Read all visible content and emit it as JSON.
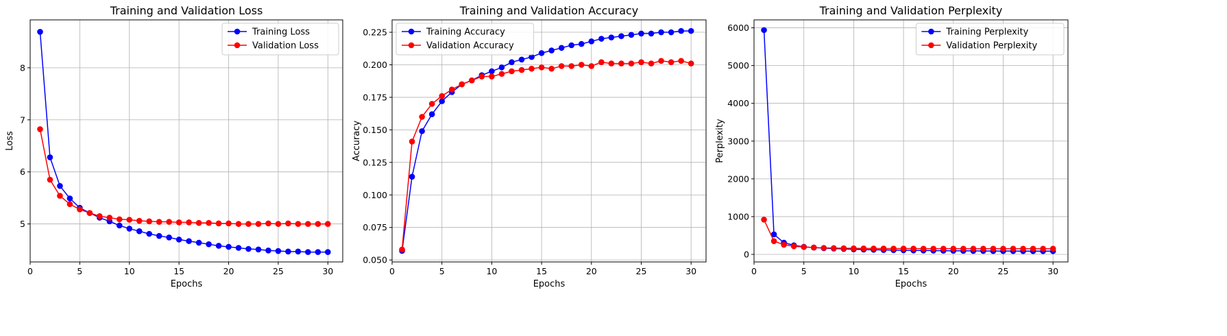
{
  "chart_data": [
    {
      "type": "line",
      "title": "Training and Validation Loss",
      "xlabel": "Epochs",
      "ylabel": "Loss",
      "xlim": [
        0,
        31.5
      ],
      "ylim": [
        4.27,
        8.92
      ],
      "xticks": [
        0,
        5,
        10,
        15,
        20,
        25,
        30
      ],
      "yticks": [
        5,
        6,
        7,
        8
      ],
      "grid": true,
      "legend": "top-right",
      "x": [
        1,
        2,
        3,
        4,
        5,
        6,
        7,
        8,
        9,
        10,
        11,
        12,
        13,
        14,
        15,
        16,
        17,
        18,
        19,
        20,
        21,
        22,
        23,
        24,
        25,
        26,
        27,
        28,
        29,
        30
      ],
      "series": [
        {
          "name": "Training Loss",
          "color": "#0000ff",
          "values": [
            8.69,
            6.28,
            5.73,
            5.49,
            5.31,
            5.21,
            5.12,
            5.05,
            4.97,
            4.91,
            4.86,
            4.81,
            4.77,
            4.74,
            4.7,
            4.67,
            4.64,
            4.61,
            4.58,
            4.56,
            4.54,
            4.52,
            4.51,
            4.49,
            4.48,
            4.47,
            4.47,
            4.46,
            4.46,
            4.46
          ]
        },
        {
          "name": "Validation Loss",
          "color": "#ff0000",
          "values": [
            6.82,
            5.85,
            5.54,
            5.38,
            5.28,
            5.21,
            5.15,
            5.12,
            5.09,
            5.08,
            5.06,
            5.05,
            5.04,
            5.04,
            5.03,
            5.03,
            5.02,
            5.02,
            5.01,
            5.01,
            5.0,
            5.0,
            5.0,
            5.01,
            5.0,
            5.01,
            5.0,
            5.0,
            5.0,
            5.0
          ]
        }
      ]
    },
    {
      "type": "line",
      "title": "Training and Validation Accuracy",
      "xlabel": "Epochs",
      "ylabel": "Accuracy",
      "xlim": [
        0,
        31.5
      ],
      "ylim": [
        0.0485,
        0.2345
      ],
      "xticks": [
        0,
        5,
        10,
        15,
        20,
        25,
        30
      ],
      "yticks": [
        0.05,
        0.075,
        0.1,
        0.125,
        0.15,
        0.175,
        0.2,
        0.225
      ],
      "grid": true,
      "legend": "top-left",
      "x": [
        1,
        2,
        3,
        4,
        5,
        6,
        7,
        8,
        9,
        10,
        11,
        12,
        13,
        14,
        15,
        16,
        17,
        18,
        19,
        20,
        21,
        22,
        23,
        24,
        25,
        26,
        27,
        28,
        29,
        30
      ],
      "series": [
        {
          "name": "Training Accuracy",
          "color": "#0000ff",
          "values": [
            0.057,
            0.114,
            0.149,
            0.162,
            0.172,
            0.179,
            0.185,
            0.188,
            0.192,
            0.195,
            0.198,
            0.202,
            0.204,
            0.206,
            0.209,
            0.211,
            0.213,
            0.215,
            0.216,
            0.218,
            0.22,
            0.221,
            0.222,
            0.223,
            0.224,
            0.224,
            0.225,
            0.225,
            0.226,
            0.226
          ]
        },
        {
          "name": "Validation Accuracy",
          "color": "#ff0000",
          "values": [
            0.058,
            0.141,
            0.16,
            0.17,
            0.176,
            0.181,
            0.185,
            0.188,
            0.191,
            0.191,
            0.193,
            0.195,
            0.196,
            0.197,
            0.198,
            0.197,
            0.199,
            0.199,
            0.2,
            0.199,
            0.202,
            0.201,
            0.201,
            0.201,
            0.202,
            0.201,
            0.203,
            0.202,
            0.203,
            0.201
          ]
        }
      ]
    },
    {
      "type": "line",
      "title": "Training and Validation Perplexity",
      "xlabel": "Epochs",
      "ylabel": "Perplexity",
      "xlim": [
        0,
        31.5
      ],
      "ylim": [
        -200,
        6210
      ],
      "xticks": [
        0,
        5,
        10,
        15,
        20,
        25,
        30
      ],
      "yticks": [
        0,
        1000,
        2000,
        3000,
        4000,
        5000,
        6000
      ],
      "grid": true,
      "legend": "top-right",
      "x": [
        1,
        2,
        3,
        4,
        5,
        6,
        7,
        8,
        9,
        10,
        11,
        12,
        13,
        14,
        15,
        16,
        17,
        18,
        19,
        20,
        21,
        22,
        23,
        24,
        25,
        26,
        27,
        28,
        29,
        30
      ],
      "series": [
        {
          "name": "Training Perplexity",
          "color": "#0000ff",
          "values": [
            5940,
            530,
            310,
            240,
            200,
            180,
            165,
            155,
            145,
            135,
            128,
            122,
            117,
            113,
            109,
            106,
            103,
            100,
            98,
            96,
            94,
            92,
            91,
            89,
            88,
            88,
            87,
            87,
            86,
            86
          ]
        },
        {
          "name": "Validation Perplexity",
          "color": "#ff0000",
          "values": [
            920,
            350,
            255,
            215,
            195,
            182,
            172,
            167,
            162,
            160,
            158,
            156,
            155,
            154,
            153,
            153,
            152,
            152,
            151,
            151,
            150,
            150,
            150,
            151,
            150,
            151,
            150,
            150,
            150,
            150
          ]
        }
      ]
    }
  ]
}
